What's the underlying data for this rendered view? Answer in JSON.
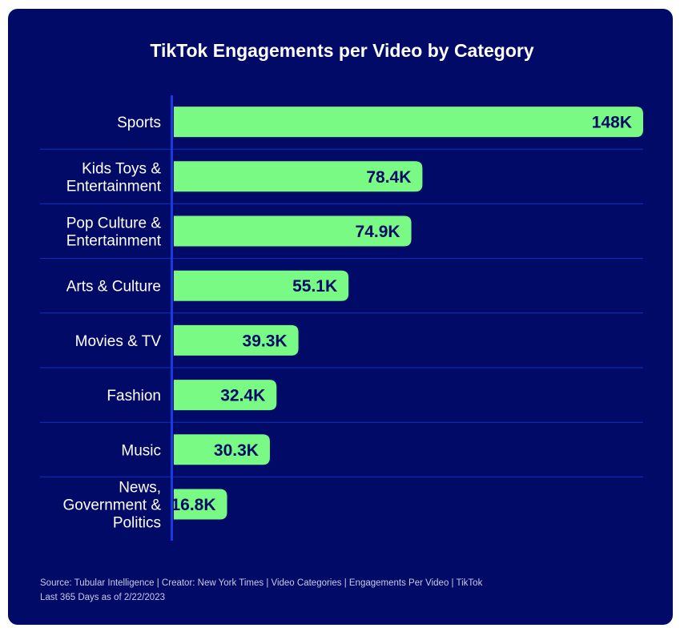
{
  "chart_data": {
    "type": "bar",
    "orientation": "horizontal",
    "title": "TikTok Engagements per Video by Category",
    "categories": [
      [
        "Sports"
      ],
      [
        "Kids Toys &",
        "Entertainment"
      ],
      [
        "Pop Culture &",
        "Entertainment"
      ],
      [
        "Arts & Culture"
      ],
      [
        "Movies & TV"
      ],
      [
        "Fashion"
      ],
      [
        "Music"
      ],
      [
        "News,",
        "Government &",
        "Politics"
      ]
    ],
    "values": [
      148000,
      78400,
      74900,
      55100,
      39300,
      32400,
      30300,
      16800
    ],
    "data_labels": [
      "148K",
      "78.4K",
      "74.9K",
      "55.1K",
      "39.3K",
      "32.4K",
      "30.3K",
      "16.8K"
    ],
    "xlabel": "",
    "ylabel": "",
    "xlim": [
      0,
      148000
    ],
    "grid": false,
    "colors": {
      "background": "#020a68",
      "bar": "#78fa85",
      "axis": "#1a3ae0",
      "separator": "#1230c0",
      "label": "#ffffff",
      "value_text": "#020a68"
    }
  },
  "footer": {
    "source": "Source: Tubular Intelligence | Creator: New York Times | Video Categories | Engagements Per Video | TikTok",
    "date_range": "Last 365 Days as of 2/22/2023"
  }
}
